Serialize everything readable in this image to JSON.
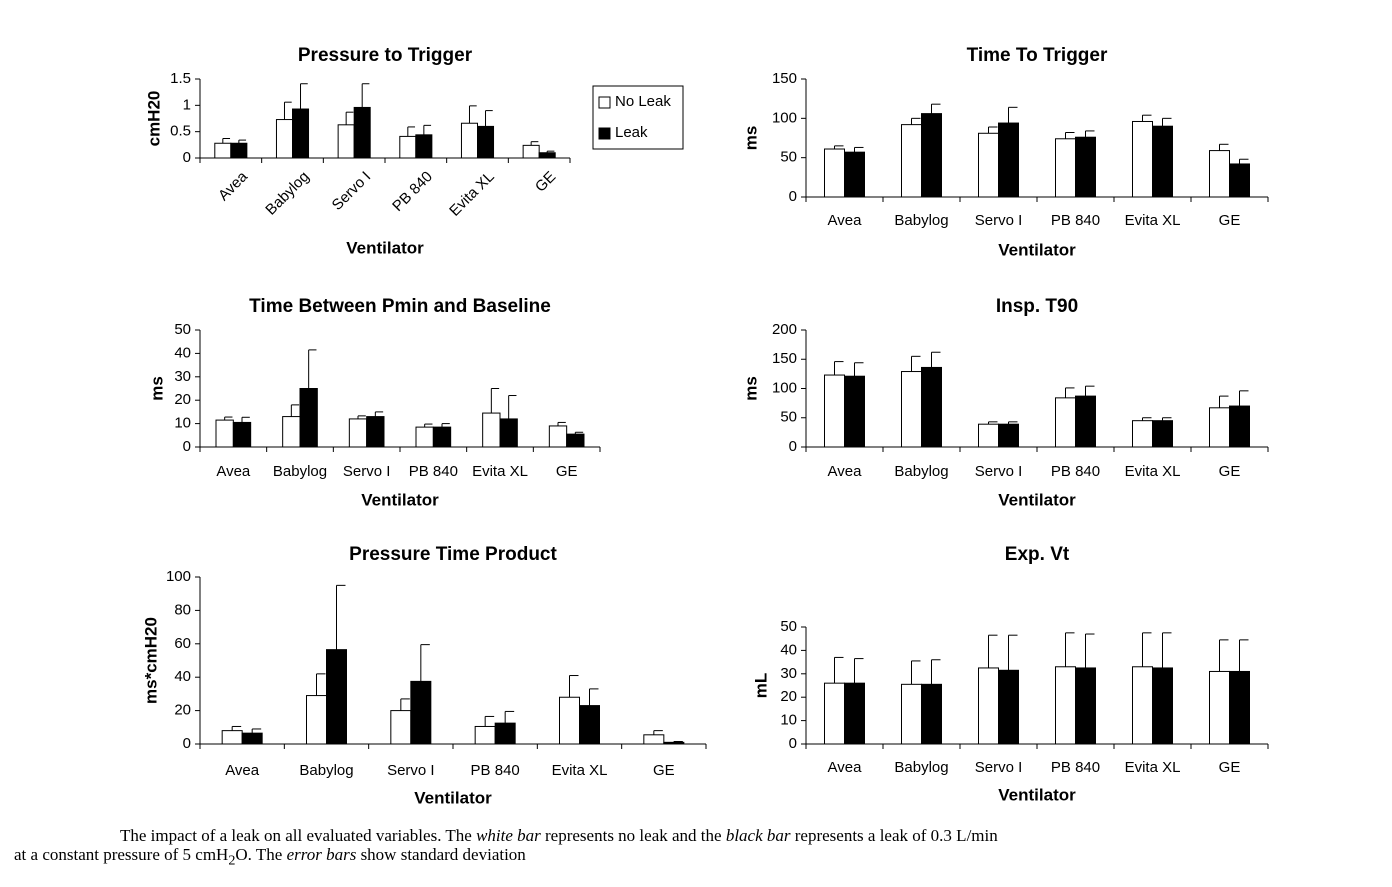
{
  "colors": {
    "no_leak": "#ffffff",
    "leak": "#000000",
    "stroke": "#000000"
  },
  "legend": {
    "items": [
      "No Leak",
      "Leak"
    ]
  },
  "chart_data": [
    {
      "type": "bar",
      "title": "Pressure to Trigger",
      "xlabel": "Ventilator",
      "ylabel": "cmH20",
      "ylim": [
        0,
        1.5
      ],
      "yticks": [
        "0",
        "0.5",
        "1",
        "1.5"
      ],
      "categories": [
        "Avea",
        "Babylog",
        "Servo I",
        "PB 840",
        "Evita XL",
        "GE"
      ],
      "rotated_labels": true,
      "legend": "right",
      "series": [
        {
          "name": "No Leak",
          "values": [
            0.28,
            0.73,
            0.63,
            0.41,
            0.66,
            0.24
          ],
          "errors": [
            0.09,
            0.33,
            0.24,
            0.18,
            0.33,
            0.07
          ]
        },
        {
          "name": "Leak",
          "values": [
            0.28,
            0.93,
            0.96,
            0.44,
            0.6,
            0.1
          ],
          "errors": [
            0.06,
            0.48,
            0.45,
            0.18,
            0.3,
            0.03
          ]
        }
      ]
    },
    {
      "type": "bar",
      "title": "Time To Trigger",
      "xlabel": "Ventilator",
      "ylabel": "ms",
      "ylim": [
        0,
        150
      ],
      "yticks": [
        "0",
        "50",
        "100",
        "150"
      ],
      "categories": [
        "Avea",
        "Babylog",
        "Servo I",
        "PB 840",
        "Evita XL",
        "GE"
      ],
      "series": [
        {
          "name": "No Leak",
          "values": [
            61,
            92,
            81,
            74,
            96,
            59
          ],
          "errors": [
            4,
            8,
            8,
            8,
            8,
            8
          ]
        },
        {
          "name": "Leak",
          "values": [
            57,
            106,
            94,
            76,
            90,
            42
          ],
          "errors": [
            6,
            12,
            20,
            8,
            10,
            6
          ]
        }
      ]
    },
    {
      "type": "bar",
      "title": "Time Between Pmin and Baseline",
      "xlabel": "Ventilator",
      "ylabel": "ms",
      "ylim": [
        0,
        50
      ],
      "yticks": [
        "0",
        "10",
        "20",
        "30",
        "40",
        "50"
      ],
      "categories": [
        "Avea",
        "Babylog",
        "Servo I",
        "PB 840",
        "Evita XL",
        "GE"
      ],
      "series": [
        {
          "name": "No Leak",
          "values": [
            11.5,
            13,
            12,
            8.5,
            14.5,
            9
          ],
          "errors": [
            1.3,
            5,
            1.3,
            1.3,
            10.5,
            1.5
          ]
        },
        {
          "name": "Leak",
          "values": [
            10.5,
            25,
            13,
            8.5,
            12,
            5.5
          ],
          "errors": [
            2.2,
            16.5,
            2,
            1.5,
            10,
            0.8
          ]
        }
      ]
    },
    {
      "type": "bar",
      "title": "Insp. T90",
      "xlabel": "Ventilator",
      "ylabel": "ms",
      "ylim": [
        0,
        200
      ],
      "yticks": [
        "0",
        "50",
        "100",
        "150",
        "200"
      ],
      "categories": [
        "Avea",
        "Babylog",
        "Servo I",
        "PB 840",
        "Evita XL",
        "GE"
      ],
      "series": [
        {
          "name": "No Leak",
          "values": [
            123,
            129,
            39,
            84,
            45,
            67
          ],
          "errors": [
            23,
            26,
            4,
            17,
            5,
            20
          ]
        },
        {
          "name": "Leak",
          "values": [
            121,
            136,
            39,
            87,
            45,
            70
          ],
          "errors": [
            23,
            26,
            4,
            17,
            5,
            26
          ]
        }
      ]
    },
    {
      "type": "bar",
      "title": "Pressure Time Product",
      "xlabel": "Ventilator",
      "ylabel": "ms*cmH20",
      "ylim": [
        0,
        100
      ],
      "yticks": [
        "0",
        "20",
        "40",
        "60",
        "80",
        "100"
      ],
      "categories": [
        "Avea",
        "Babylog",
        "Servo I",
        "PB 840",
        "Evita XL",
        "GE"
      ],
      "series": [
        {
          "name": "No Leak",
          "values": [
            8,
            29,
            20,
            10.5,
            28,
            5.5
          ],
          "errors": [
            2.5,
            13,
            7,
            6,
            13,
            2.5
          ]
        },
        {
          "name": "Leak",
          "values": [
            6.5,
            56.5,
            37.5,
            12.5,
            23,
            1
          ],
          "errors": [
            2.5,
            38.5,
            22,
            7,
            10,
            0.5
          ]
        }
      ]
    },
    {
      "type": "bar",
      "title": "Exp. Vt",
      "xlabel": "Ventilator",
      "ylabel": "mL",
      "ylim": [
        0,
        50
      ],
      "yticks": [
        "0",
        "10",
        "20",
        "30",
        "40",
        "50"
      ],
      "categories": [
        "Avea",
        "Babylog",
        "Servo I",
        "PB 840",
        "Evita XL",
        "GE"
      ],
      "series": [
        {
          "name": "No Leak",
          "values": [
            26,
            25.5,
            32.5,
            33,
            33,
            31
          ],
          "errors": [
            11,
            10,
            14,
            14.5,
            14.5,
            13.5
          ]
        },
        {
          "name": "Leak",
          "values": [
            26,
            25.5,
            31.5,
            32.5,
            32.5,
            31
          ],
          "errors": [
            10.5,
            10.5,
            15,
            14.5,
            15,
            13.5
          ]
        }
      ]
    }
  ],
  "caption": {
    "p1": "The impact of a leak on all evaluated variables. The ",
    "em1": "white bar",
    "p2": " represents no leak and the ",
    "em2": "black bar",
    "p3": " represents a leak of 0.3 L/min",
    "p4": "at a constant pressure of 5 cmH",
    "sub": "2",
    "p5": "O. The ",
    "em3": "error bars",
    "p6": " show standard deviation"
  }
}
